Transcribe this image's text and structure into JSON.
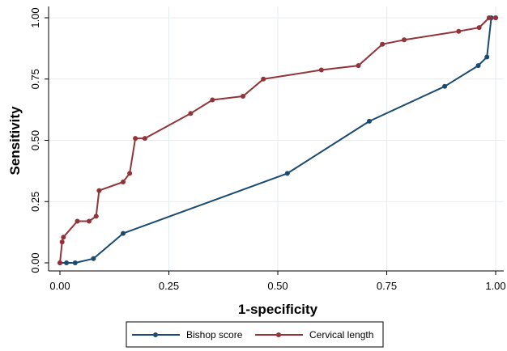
{
  "chart_data": {
    "type": "line",
    "xlabel": "1-specificity",
    "ylabel": "Sensitivity",
    "xlim": [
      0,
      1
    ],
    "ylim": [
      0,
      1
    ],
    "xticks": [
      "0.00",
      "0.25",
      "0.50",
      "0.75",
      "1.00"
    ],
    "yticks": [
      "0.00",
      "0.25",
      "0.50",
      "0.75",
      "1.00"
    ],
    "grid": true,
    "legend_position": "bottom",
    "series": [
      {
        "name": "Bishop score",
        "color": "#1a4a70",
        "x": [
          0.0,
          0.015,
          0.035,
          0.077,
          0.145,
          0.522,
          0.71,
          0.883,
          0.96,
          0.98,
          0.99,
          1.0
        ],
        "y": [
          0.0,
          0.0,
          0.0,
          0.017,
          0.12,
          0.365,
          0.578,
          0.72,
          0.805,
          0.84,
          1.0,
          1.0
        ]
      },
      {
        "name": "Cervical length",
        "color": "#923338",
        "x": [
          0.0,
          0.005,
          0.008,
          0.04,
          0.067,
          0.083,
          0.09,
          0.145,
          0.16,
          0.173,
          0.195,
          0.3,
          0.35,
          0.42,
          0.467,
          0.6,
          0.685,
          0.74,
          0.79,
          0.915,
          0.962,
          0.985,
          1.0
        ],
        "y": [
          0.0,
          0.085,
          0.105,
          0.17,
          0.17,
          0.19,
          0.295,
          0.33,
          0.365,
          0.508,
          0.508,
          0.61,
          0.665,
          0.68,
          0.75,
          0.787,
          0.805,
          0.892,
          0.91,
          0.945,
          0.96,
          1.0,
          1.0
        ]
      }
    ]
  }
}
